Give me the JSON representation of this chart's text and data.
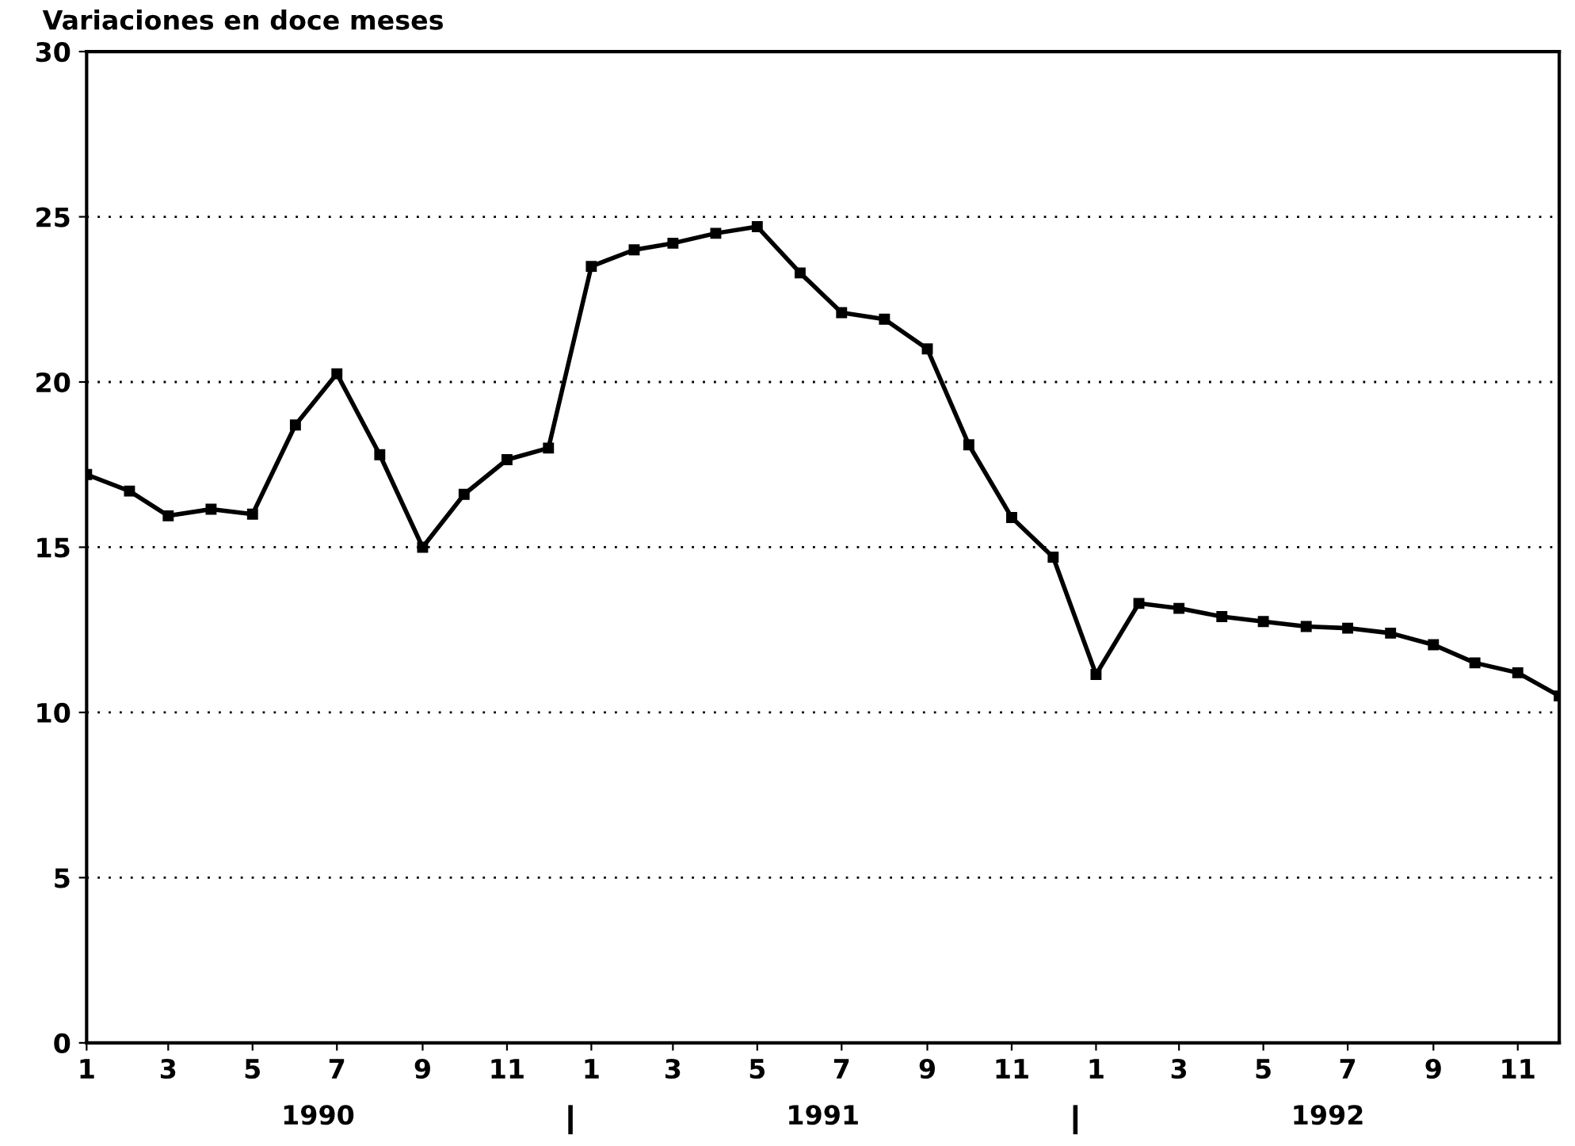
{
  "chart_data": {
    "type": "line",
    "title": "Variaciones en doce meses",
    "x": [
      "1990-01",
      "1990-02",
      "1990-03",
      "1990-04",
      "1990-05",
      "1990-06",
      "1990-07",
      "1990-08",
      "1990-09",
      "1990-10",
      "1990-11",
      "1990-12",
      "1991-01",
      "1991-02",
      "1991-03",
      "1991-04",
      "1991-05",
      "1991-06",
      "1991-07",
      "1991-08",
      "1991-09",
      "1991-10",
      "1991-11",
      "1991-12",
      "1992-01",
      "1992-02",
      "1992-03",
      "1992-04",
      "1992-05",
      "1992-06",
      "1992-07",
      "1992-08",
      "1992-09",
      "1992-10",
      "1992-11",
      "1992-12"
    ],
    "series": [
      {
        "color": "#000000",
        "values": [
          17.2,
          16.7,
          15.95,
          16.15,
          16.0,
          18.7,
          20.25,
          17.8,
          15.0,
          16.6,
          17.65,
          18.0,
          23.5,
          24.0,
          24.2,
          24.5,
          24.7,
          23.3,
          22.1,
          21.9,
          21.0,
          18.1,
          15.9,
          14.7,
          11.15,
          13.3,
          13.15,
          12.9,
          12.75,
          12.6,
          12.55,
          12.4,
          12.05,
          11.5,
          11.2,
          10.5
        ]
      }
    ],
    "xlim": [
      "1990-01",
      "1992-12"
    ],
    "ylim": [
      0,
      30
    ],
    "yticks": [
      0,
      5,
      10,
      15,
      20,
      25,
      30
    ],
    "xticks": [
      {
        "value": "1990-01",
        "label": "1"
      },
      {
        "value": "1990-03",
        "label": "3"
      },
      {
        "value": "1990-05",
        "label": "5"
      },
      {
        "value": "1990-07",
        "label": "7"
      },
      {
        "value": "1990-09",
        "label": "9"
      },
      {
        "value": "1990-11",
        "label": "11"
      },
      {
        "value": "1991-01",
        "label": "1"
      },
      {
        "value": "1991-03",
        "label": "3"
      },
      {
        "value": "1991-05",
        "label": "5"
      },
      {
        "value": "1991-07",
        "label": "7"
      },
      {
        "value": "1991-09",
        "label": "9"
      },
      {
        "value": "1991-11",
        "label": "11"
      },
      {
        "value": "1992-01",
        "label": "1"
      },
      {
        "value": "1992-03",
        "label": "3"
      },
      {
        "value": "1992-05",
        "label": "5"
      },
      {
        "value": "1992-07",
        "label": "7"
      },
      {
        "value": "1992-09",
        "label": "9"
      },
      {
        "value": "1992-11",
        "label": "11"
      }
    ],
    "annotations": [
      "1990",
      "1991",
      "1992"
    ],
    "grid": "y",
    "marker": "square",
    "line_style": "solid"
  }
}
